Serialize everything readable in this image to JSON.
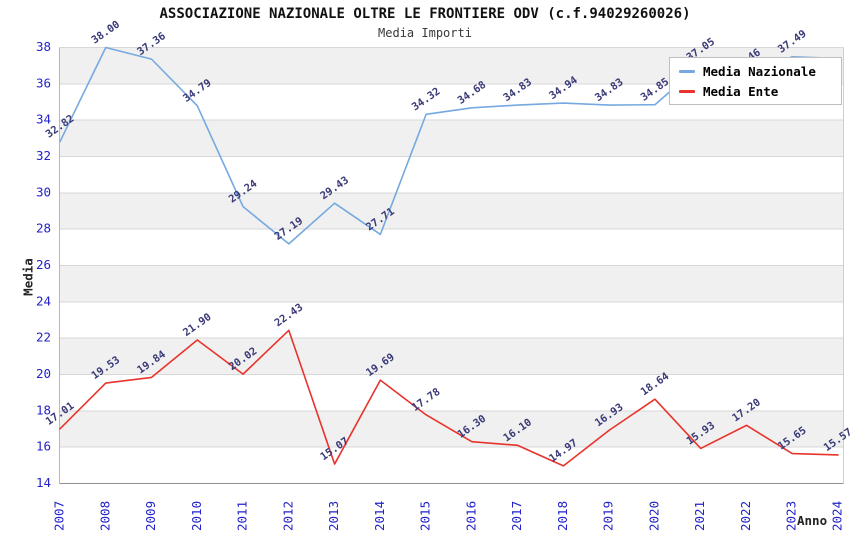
{
  "header": {
    "title": "ASSOCIAZIONE NAZIONALE OLTRE LE FRONTIERE ODV (c.f.94029260026)",
    "subtitle": "Media Importi"
  },
  "legend": {
    "items": [
      {
        "label": "Media Nazionale",
        "color": "#76a9df"
      },
      {
        "label": "Media Ente",
        "color": "#e8342c"
      }
    ]
  },
  "chart_data": {
    "type": "line",
    "title": "ASSOCIAZIONE NAZIONALE OLTRE LE FRONTIERE ODV (c.f.94029260026)",
    "subtitle": "Media Importi",
    "xlabel": "Anno",
    "ylabel": "Media",
    "x": [
      2007,
      2008,
      2009,
      2010,
      2011,
      2012,
      2013,
      2014,
      2015,
      2016,
      2017,
      2018,
      2019,
      2020,
      2021,
      2022,
      2023,
      2024
    ],
    "ylim": [
      14,
      38
    ],
    "ytick_step": 2,
    "grid": true,
    "background_bands": true,
    "legend_position": "top-right",
    "tick_label_color": "#2323c8",
    "point_label_color": "#3a3a78",
    "band_color": "#f0f0f0",
    "gridline_color": "#d7d7d7",
    "series": [
      {
        "name": "Media Nazionale",
        "color": "#76a9df",
        "values": [
          32.82,
          38.0,
          37.36,
          34.79,
          29.24,
          27.19,
          29.43,
          27.71,
          34.32,
          34.68,
          34.83,
          34.94,
          34.83,
          34.85,
          37.05,
          36.46,
          37.49,
          37.4
        ],
        "labels": [
          "32.82",
          "38.00",
          "37.36",
          "34.79",
          "29.24",
          "27.19",
          "29.43",
          "27.71",
          "34.32",
          "34.68",
          "34.83",
          "34.94",
          "34.83",
          "34.85",
          "37.05",
          "36.46",
          "37.49",
          ""
        ]
      },
      {
        "name": "Media Ente",
        "color": "#e8342c",
        "values": [
          17.01,
          19.53,
          19.84,
          21.9,
          20.02,
          22.43,
          15.07,
          19.69,
          17.78,
          16.3,
          16.1,
          14.97,
          16.93,
          18.64,
          15.93,
          17.2,
          15.65,
          15.57
        ],
        "labels": [
          "17.01",
          "19.53",
          "19.84",
          "21.90",
          "20.02",
          "22.43",
          "15.07",
          "19.69",
          "17.78",
          "16.30",
          "16.10",
          "14.97",
          "16.93",
          "18.64",
          "15.93",
          "17.20",
          "15.65",
          "15.57"
        ]
      }
    ]
  }
}
